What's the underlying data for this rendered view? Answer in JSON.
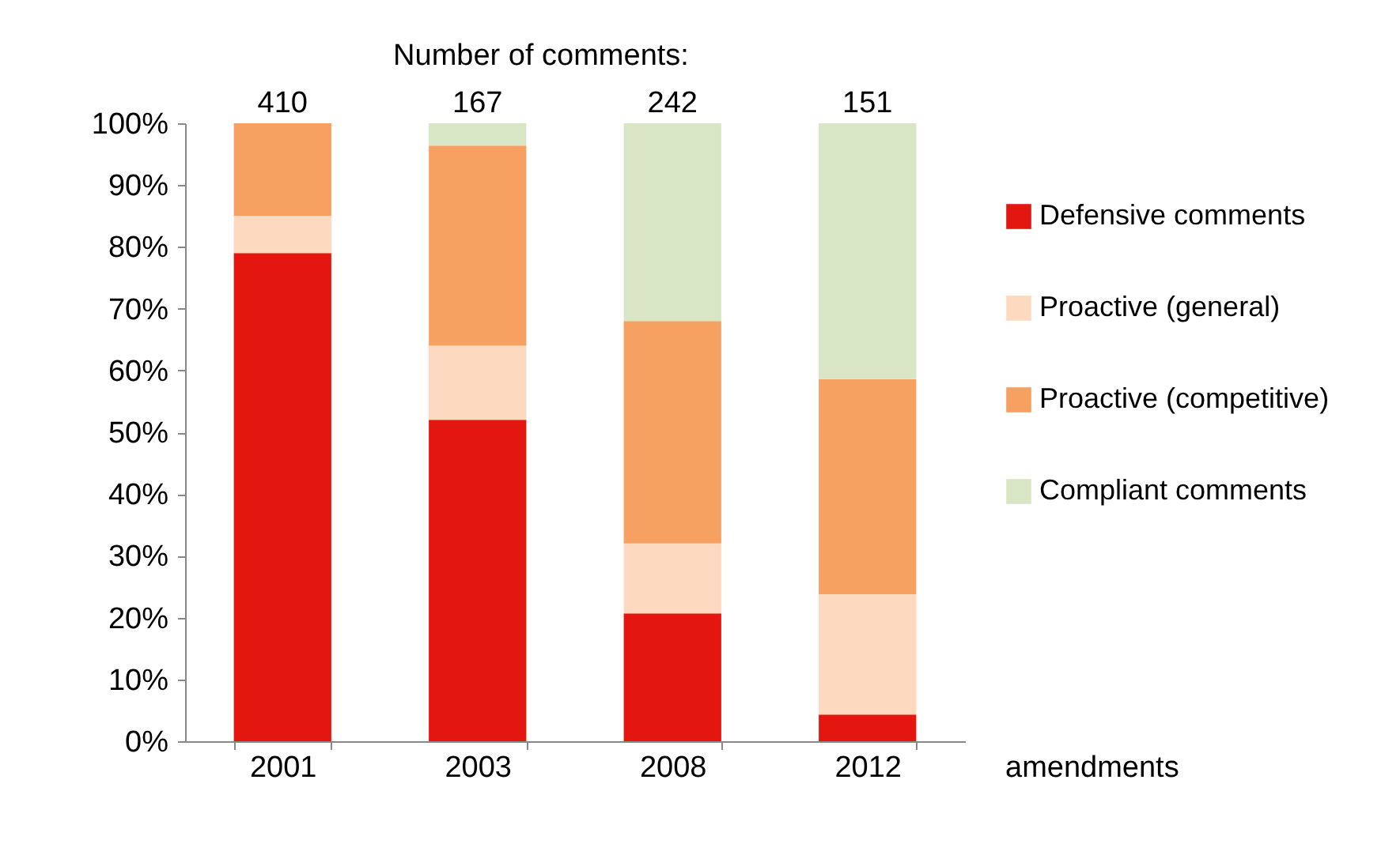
{
  "chart_data": {
    "type": "bar",
    "stacked": true,
    "xlabel": "amendments",
    "categories": [
      "2001",
      "2003",
      "2008",
      "2012"
    ],
    "series": [
      {
        "name": "Defensive comments",
        "color": "#e3170f",
        "values": [
          79,
          52,
          20.7,
          4.3
        ]
      },
      {
        "name": "Proactive (general)",
        "color": "#fcd9bf",
        "values": [
          6,
          12,
          11.3,
          19.5
        ]
      },
      {
        "name": "Proactive (competitive)",
        "color": "#f6a062",
        "values": [
          15,
          32.4,
          36,
          34.8
        ]
      },
      {
        "name": "Compliant comments",
        "color": "#d8e6c6",
        "values": [
          0,
          3.6,
          32,
          41.4
        ]
      }
    ],
    "ylim": [
      0,
      100
    ],
    "yticks": [
      {
        "value": 0,
        "label": "0%"
      },
      {
        "value": 10,
        "label": "10%"
      },
      {
        "value": 20,
        "label": "20%"
      },
      {
        "value": 30,
        "label": "30%"
      },
      {
        "value": 40,
        "label": "40%"
      },
      {
        "value": 50,
        "label": "50%"
      },
      {
        "value": 60,
        "label": "60%"
      },
      {
        "value": 70,
        "label": "70%"
      },
      {
        "value": 80,
        "label": "80%"
      },
      {
        "value": 90,
        "label": "90%"
      },
      {
        "value": 100,
        "label": "100%"
      }
    ],
    "grid": false,
    "legend": "right",
    "annotations": [
      "Number of comments:",
      "410",
      "167",
      "242",
      "151"
    ]
  }
}
